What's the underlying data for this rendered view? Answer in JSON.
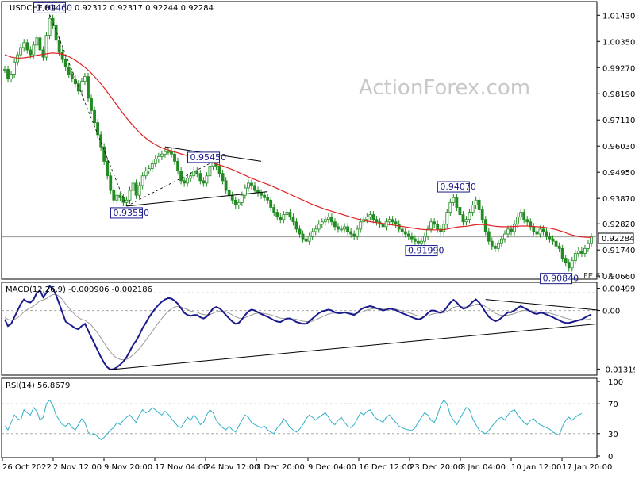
{
  "price_panel": {
    "symbol_label": "USDCHF,H4",
    "ohlc": "0.92312 0.92317 0.92244 0.92284",
    "watermark": "ActionForex.com",
    "current_price": "0.92284",
    "fe_label": "FE 61.8",
    "y_ticks": [
      "1.01430",
      "1.00350",
      "0.99270",
      "0.98190",
      "0.97110",
      "0.96030",
      "0.94950",
      "0.93870",
      "0.92820",
      "0.91740",
      "0.90660"
    ],
    "annotations": [
      {
        "text": "1.01460",
        "value": 1.0146,
        "idx": 14
      },
      {
        "text": "0.93550",
        "value": 0.9355,
        "idx": 38
      },
      {
        "text": "0.95450",
        "value": 0.9545,
        "idx": 66
      },
      {
        "text": "0.94070",
        "value": 0.9407,
        "idx": 140
      },
      {
        "text": "0.91990",
        "value": 0.9199,
        "idx": 130
      },
      {
        "text": "0.90840",
        "value": 0.9084,
        "idx": 172
      }
    ]
  },
  "macd_panel": {
    "label": "MACD(12,26,9) -0.000906 -0.002186",
    "y_ticks": [
      "0.004993",
      "0.00",
      "-0.013193"
    ]
  },
  "rsi_panel": {
    "label": "RSI(14) 56.8679",
    "y_ticks": [
      "100",
      "70",
      "30",
      "0"
    ]
  },
  "x_ticks": [
    "26 Oct 2022",
    "2 Nov 12:00",
    "9 Nov 20:00",
    "17 Nov 04:00",
    "24 Nov 12:00",
    "1 Dec 20:00",
    "9 Dec 04:00",
    "16 Dec 12:00",
    "23 Dec 20:00",
    "3 Jan 04:00",
    "10 Jan 12:00",
    "17 Jan 20:00"
  ],
  "colors": {
    "candle": "#228b22",
    "ma": "#e02020",
    "macd": "#1a1a8c",
    "signal": "#999999",
    "rsi": "#30b0c8",
    "grid": "#cccccc",
    "watermark": "#c8c8c8"
  },
  "chart_data": [
    {
      "type": "candlestick",
      "title": "USDCHF,H4",
      "ylim": [
        0.906,
        1.018
      ],
      "close": [
        0.992,
        0.988,
        0.99,
        0.995,
        0.998,
        1.001,
        1.003,
        1.0,
        0.998,
        1.002,
        1.005,
        1.0,
        0.997,
        1.006,
        1.013,
        1.01,
        1.004,
        0.999,
        0.996,
        0.993,
        0.99,
        0.988,
        0.986,
        0.983,
        0.987,
        0.989,
        0.98,
        0.975,
        0.97,
        0.965,
        0.96,
        0.954,
        0.948,
        0.942,
        0.938,
        0.94,
        0.939,
        0.937,
        0.938,
        0.942,
        0.945,
        0.94,
        0.944,
        0.948,
        0.95,
        0.951,
        0.953,
        0.955,
        0.956,
        0.957,
        0.958,
        0.958,
        0.957,
        0.954,
        0.95,
        0.946,
        0.945,
        0.947,
        0.948,
        0.95,
        0.949,
        0.946,
        0.945,
        0.948,
        0.952,
        0.954,
        0.952,
        0.949,
        0.946,
        0.942,
        0.94,
        0.938,
        0.936,
        0.937,
        0.94,
        0.943,
        0.945,
        0.944,
        0.942,
        0.941,
        0.94,
        0.939,
        0.938,
        0.935,
        0.933,
        0.931,
        0.93,
        0.932,
        0.933,
        0.931,
        0.929,
        0.926,
        0.924,
        0.922,
        0.921,
        0.923,
        0.925,
        0.926,
        0.928,
        0.929,
        0.93,
        0.931,
        0.929,
        0.927,
        0.926,
        0.926,
        0.927,
        0.925,
        0.924,
        0.923,
        0.926,
        0.929,
        0.93,
        0.931,
        0.932,
        0.93,
        0.929,
        0.928,
        0.927,
        0.929,
        0.93,
        0.929,
        0.928,
        0.926,
        0.925,
        0.924,
        0.923,
        0.922,
        0.921,
        0.92,
        0.921,
        0.923,
        0.926,
        0.929,
        0.928,
        0.926,
        0.925,
        0.928,
        0.933,
        0.937,
        0.939,
        0.935,
        0.932,
        0.929,
        0.93,
        0.933,
        0.936,
        0.938,
        0.934,
        0.93,
        0.925,
        0.921,
        0.919,
        0.918,
        0.92,
        0.922,
        0.924,
        0.926,
        0.925,
        0.928,
        0.931,
        0.933,
        0.93,
        0.929,
        0.927,
        0.925,
        0.924,
        0.926,
        0.925,
        0.923,
        0.922,
        0.921,
        0.919,
        0.918,
        0.914,
        0.912,
        0.91,
        0.913,
        0.916,
        0.917,
        0.916,
        0.918,
        0.92,
        0.9228
      ],
      "ma": [
        0.998,
        0.9975,
        0.997,
        0.9968,
        0.9966,
        0.9966,
        0.9967,
        0.9969,
        0.9971,
        0.9974,
        0.9978,
        0.998,
        0.9982,
        0.9984,
        0.9986,
        0.9987,
        0.9986,
        0.9985,
        0.9982,
        0.9978,
        0.9972,
        0.9965,
        0.9957,
        0.9948,
        0.9938,
        0.9928,
        0.9917,
        0.9904,
        0.989,
        0.9875,
        0.986,
        0.9843,
        0.9826,
        0.9808,
        0.979,
        0.9772,
        0.9754,
        0.9736,
        0.9719,
        0.9703,
        0.9688,
        0.9673,
        0.966,
        0.9647,
        0.9636,
        0.9626,
        0.9617,
        0.9609,
        0.9602,
        0.9596,
        0.9591,
        0.9587,
        0.9583,
        0.9579,
        0.9575,
        0.9571,
        0.9567,
        0.9563,
        0.9559,
        0.9555,
        0.9551,
        0.9547,
        0.9543,
        0.9539,
        0.9536,
        0.9533,
        0.9529,
        0.9525,
        0.9521,
        0.9516,
        0.9511,
        0.9506,
        0.95,
        0.9494,
        0.9488,
        0.9482,
        0.9476,
        0.947,
        0.9465,
        0.946,
        0.9455,
        0.945,
        0.9445,
        0.944,
        0.9434,
        0.9428,
        0.9422,
        0.9416,
        0.941,
        0.9404,
        0.9398,
        0.9392,
        0.9386,
        0.938,
        0.9374,
        0.9368,
        0.9362,
        0.9357,
        0.9352,
        0.9347,
        0.9342,
        0.9338,
        0.9334,
        0.933,
        0.9326,
        0.9322,
        0.9318,
        0.9314,
        0.931,
        0.9306,
        0.9302,
        0.9299,
        0.9296,
        0.9293,
        0.9291,
        0.9289,
        0.9287,
        0.9285,
        0.9283,
        0.9281,
        0.9279,
        0.9277,
        0.9275,
        0.9273,
        0.9271,
        0.9269,
        0.9267,
        0.9265,
        0.9263,
        0.9261,
        0.9259,
        0.9258,
        0.9257,
        0.9257,
        0.9257,
        0.9257,
        0.9257,
        0.9258,
        0.926,
        0.9263,
        0.9266,
        0.9268,
        0.927,
        0.9271,
        0.9272,
        0.9274,
        0.9276,
        0.9278,
        0.9279,
        0.9279,
        0.9278,
        0.9276,
        0.9274,
        0.9272,
        0.9271,
        0.927,
        0.927,
        0.927,
        0.927,
        0.9271,
        0.9272,
        0.9273,
        0.9273,
        0.9273,
        0.9272,
        0.9271,
        0.927,
        0.9269,
        0.9268,
        0.9266,
        0.9264,
        0.9261,
        0.9258,
        0.9254,
        0.925,
        0.9245,
        0.924,
        0.9236,
        0.9233,
        0.923,
        0.9228,
        0.9227,
        0.9226,
        0.9226
      ]
    },
    {
      "type": "line",
      "title": "MACD(12,26,9)",
      "ylim": [
        -0.0142,
        0.006
      ],
      "macd": [
        -0.002,
        -0.0035,
        -0.003,
        -0.0015,
        0.0,
        0.0015,
        0.0025,
        0.002,
        0.0018,
        0.0025,
        0.004,
        0.0045,
        0.003,
        0.004,
        0.0055,
        0.005,
        0.0035,
        0.0015,
        -0.0005,
        -0.0025,
        -0.003,
        -0.0035,
        -0.004,
        -0.0042,
        -0.0035,
        -0.003,
        -0.0045,
        -0.006,
        -0.0075,
        -0.009,
        -0.0105,
        -0.0118,
        -0.0128,
        -0.0133,
        -0.0132,
        -0.0128,
        -0.0122,
        -0.0115,
        -0.0105,
        -0.0092,
        -0.0078,
        -0.0068,
        -0.0055,
        -0.004,
        -0.0028,
        -0.0015,
        -0.0005,
        0.0005,
        0.0013,
        0.002,
        0.0025,
        0.0028,
        0.0027,
        0.0022,
        0.0015,
        0.0005,
        -0.0005,
        -0.001,
        -0.0012,
        -0.001,
        -0.001,
        -0.0015,
        -0.0018,
        -0.0014,
        -0.0005,
        0.0005,
        0.0008,
        0.0005,
        -0.0002,
        -0.001,
        -0.0018,
        -0.0025,
        -0.003,
        -0.0028,
        -0.002,
        -0.001,
        -0.0002,
        0.0002,
        0.0,
        -0.0004,
        -0.0008,
        -0.0011,
        -0.0014,
        -0.0018,
        -0.0022,
        -0.0025,
        -0.0026,
        -0.0022,
        -0.0018,
        -0.0018,
        -0.0022,
        -0.0026,
        -0.0028,
        -0.003,
        -0.003,
        -0.0025,
        -0.0018,
        -0.0012,
        -0.0006,
        -0.0002,
        0.0,
        0.0002,
        0.0,
        -0.0004,
        -0.0006,
        -0.0006,
        -0.0004,
        -0.0006,
        -0.0008,
        -0.001,
        -0.0005,
        0.0002,
        0.0006,
        0.0008,
        0.001,
        0.0008,
        0.0005,
        0.0003,
        0.0,
        0.0002,
        0.0004,
        0.0003,
        0.0001,
        -0.0003,
        -0.0006,
        -0.0009,
        -0.0012,
        -0.0015,
        -0.0018,
        -0.002,
        -0.0018,
        -0.0013,
        -0.0006,
        0.0,
        0.0,
        -0.0003,
        -0.0005,
        -0.0001,
        0.0008,
        0.0018,
        0.0024,
        0.0018,
        0.001,
        0.0004,
        0.0006,
        0.0012,
        0.002,
        0.0025,
        0.0018,
        0.0008,
        -0.0004,
        -0.0014,
        -0.002,
        -0.0024,
        -0.0022,
        -0.0016,
        -0.001,
        -0.0004,
        -0.0004,
        0.0,
        0.0006,
        0.001,
        0.0006,
        0.0002,
        -0.0002,
        -0.0006,
        -0.0008,
        -0.0005,
        -0.0006,
        -0.0009,
        -0.0012,
        -0.0015,
        -0.0019,
        -0.0022,
        -0.0026,
        -0.0028,
        -0.0028,
        -0.0026,
        -0.0024,
        -0.0022,
        -0.002,
        -0.0016,
        -0.0012,
        -0.0009
      ],
      "signal": [
        -0.0015,
        -0.002,
        -0.0022,
        -0.002,
        -0.0016,
        -0.001,
        -0.0003,
        0.0002,
        0.0006,
        0.001,
        0.0016,
        0.0022,
        0.0024,
        0.0027,
        0.0032,
        0.0036,
        0.0036,
        0.0032,
        0.0025,
        0.0015,
        0.0006,
        -0.0002,
        -0.001,
        -0.0016,
        -0.002,
        -0.0022,
        -0.0027,
        -0.0033,
        -0.0042,
        -0.0051,
        -0.0062,
        -0.0073,
        -0.0084,
        -0.0094,
        -0.0102,
        -0.0107,
        -0.011,
        -0.0111,
        -0.011,
        -0.0106,
        -0.01,
        -0.0093,
        -0.0086,
        -0.0077,
        -0.0067,
        -0.0057,
        -0.0047,
        -0.0037,
        -0.0027,
        -0.0018,
        -0.0009,
        -0.0002,
        0.0004,
        0.0008,
        0.0009,
        0.0008,
        0.0005,
        0.0002,
        -0.0001,
        -0.0003,
        -0.0004,
        -0.0007,
        -0.0009,
        -0.001,
        -0.0009,
        -0.0006,
        -0.0003,
        -0.0001,
        -0.0001,
        -0.0003,
        -0.0006,
        -0.001,
        -0.0014,
        -0.0017,
        -0.0018,
        -0.0016,
        -0.0013,
        -0.001,
        -0.0007,
        -0.0006,
        -0.0006,
        -0.0007,
        -0.0008,
        -0.001,
        -0.0012,
        -0.0015,
        -0.0017,
        -0.0018,
        -0.0018,
        -0.0018,
        -0.0019,
        -0.002,
        -0.0022,
        -0.0024,
        -0.0025,
        -0.0025,
        -0.0024,
        -0.0021,
        -0.0018,
        -0.0014,
        -0.0011,
        -0.0008,
        -0.0006,
        -0.0006,
        -0.0006,
        -0.0006,
        -0.0006,
        -0.0006,
        -0.0006,
        -0.0007,
        -0.0006,
        -0.0004,
        -0.0002,
        0.0001,
        0.0003,
        0.0004,
        0.0004,
        0.0004,
        0.0003,
        0.0003,
        0.0003,
        0.0003,
        0.0003,
        0.0001,
        -0.0001,
        -0.0003,
        -0.0005,
        -0.0007,
        -0.001,
        -0.0012,
        -0.0013,
        -0.0013,
        -0.0012,
        -0.0009,
        -0.0007,
        -0.0006,
        -0.0006,
        -0.0005,
        -0.0002,
        0.0002,
        0.0007,
        0.0009,
        0.0009,
        0.0008,
        0.0008,
        0.0009,
        0.0011,
        0.0014,
        0.0015,
        0.0013,
        0.0009,
        0.0004,
        -0.0001,
        -0.0006,
        -0.0009,
        -0.0011,
        -0.0011,
        -0.001,
        -0.0009,
        -0.0007,
        -0.0004,
        -0.0001,
        0.0,
        0.0,
        -0.0001,
        -0.0002,
        -0.0003,
        -0.0004,
        -0.0004,
        -0.0005,
        -0.0006,
        -0.0008,
        -0.001,
        -0.0012,
        -0.0015,
        -0.0017,
        -0.0019,
        -0.0021,
        -0.0022,
        -0.0022,
        -0.0022,
        -0.0021,
        -0.002,
        -0.0018
      ]
    },
    {
      "type": "line",
      "title": "RSI(14)",
      "ylim": [
        0,
        100
      ],
      "levels": [
        70,
        30
      ],
      "rsi": [
        40,
        35,
        45,
        55,
        50,
        48,
        62,
        58,
        55,
        65,
        60,
        48,
        52,
        70,
        75,
        68,
        55,
        48,
        42,
        40,
        44,
        38,
        35,
        42,
        50,
        45,
        32,
        28,
        30,
        26,
        22,
        25,
        30,
        35,
        38,
        45,
        42,
        48,
        52,
        55,
        50,
        45,
        55,
        62,
        58,
        60,
        65,
        62,
        58,
        55,
        60,
        56,
        50,
        45,
        40,
        38,
        45,
        52,
        48,
        55,
        50,
        42,
        45,
        55,
        62,
        58,
        48,
        42,
        38,
        35,
        40,
        35,
        32,
        40,
        48,
        55,
        52,
        45,
        42,
        40,
        38,
        40,
        35,
        32,
        30,
        38,
        42,
        50,
        45,
        38,
        35,
        32,
        36,
        42,
        50,
        55,
        52,
        48,
        52,
        55,
        58,
        52,
        45,
        42,
        48,
        52,
        45,
        40,
        38,
        42,
        50,
        58,
        55,
        60,
        62,
        55,
        50,
        48,
        45,
        52,
        55,
        50,
        45,
        40,
        38,
        36,
        35,
        34,
        38,
        45,
        52,
        58,
        55,
        48,
        45,
        55,
        68,
        75,
        70,
        55,
        48,
        42,
        50,
        58,
        65,
        62,
        50,
        42,
        35,
        32,
        30,
        34,
        40,
        45,
        50,
        52,
        48,
        55,
        60,
        62,
        55,
        50,
        45,
        42,
        48,
        50,
        45,
        42,
        40,
        38,
        36,
        32,
        30,
        28,
        40,
        48,
        52,
        48,
        52,
        55,
        57
      ],
      "x_ticks": [
        "26 Oct 2022",
        "2 Nov 12:00",
        "9 Nov 20:00",
        "17 Nov 04:00",
        "24 Nov 12:00",
        "1 Dec 20:00",
        "9 Dec 04:00",
        "16 Dec 12:00",
        "23 Dec 20:00",
        "3 Jan 04:00",
        "10 Jan 12:00",
        "17 Jan 20:00"
      ]
    }
  ]
}
